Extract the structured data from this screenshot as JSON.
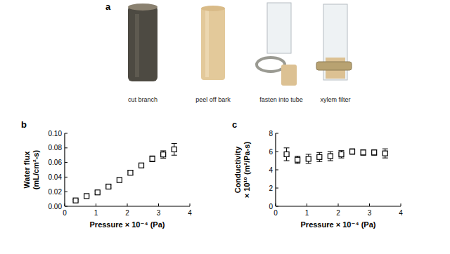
{
  "panel_a": {
    "label": "a",
    "steps": [
      "cut branch",
      "peel off bark",
      "fasten into tube",
      "xylem filter"
    ]
  },
  "chart_data": [
    {
      "type": "scatter",
      "title": "b",
      "xlabel": "Pressure × 10⁻⁴ (Pa)",
      "ylabel": [
        "Water flux",
        "(mL/cm²-s)"
      ],
      "x": [
        0.35,
        0.7,
        1.05,
        1.4,
        1.75,
        2.1,
        2.45,
        2.8,
        3.15,
        3.5
      ],
      "values": [
        0.008,
        0.014,
        0.019,
        0.027,
        0.036,
        0.046,
        0.056,
        0.065,
        0.071,
        0.078
      ],
      "errors": [
        0.001,
        0.001,
        0.002,
        0.002,
        0.003,
        0.003,
        0.003,
        0.004,
        0.005,
        0.008
      ],
      "xlim": [
        0,
        4
      ],
      "xticks": [
        0,
        1,
        2,
        3,
        4
      ],
      "ylim": [
        0,
        0.1
      ],
      "yticks": [
        {
          "value": 0,
          "label": "0.00"
        },
        {
          "value": 0.02,
          "label": "0.02"
        },
        {
          "value": 0.04,
          "label": "0.04"
        },
        {
          "value": 0.06,
          "label": "0.06"
        },
        {
          "value": 0.08,
          "label": "0.08"
        },
        {
          "value": 0.1,
          "label": "0.10"
        }
      ],
      "marker": "square",
      "color": "#000000",
      "grid": false
    },
    {
      "type": "scatter",
      "title": "c",
      "xlabel": "Pressure × 10⁻⁴ (Pa)",
      "ylabel": [
        "Conductivity",
        "× 10¹⁰ (m²/Pa-s)"
      ],
      "x": [
        0.35,
        0.7,
        1.05,
        1.4,
        1.75,
        2.1,
        2.45,
        2.8,
        3.15,
        3.5
      ],
      "values": [
        5.7,
        5.1,
        5.2,
        5.4,
        5.5,
        5.7,
        6.0,
        5.9,
        5.9,
        5.8
      ],
      "errors": [
        0.7,
        0.4,
        0.5,
        0.5,
        0.5,
        0.4,
        0.3,
        0.3,
        0.3,
        0.5
      ],
      "xlim": [
        0,
        4
      ],
      "xticks": [
        0,
        1,
        2,
        3,
        4
      ],
      "ylim": [
        0,
        8
      ],
      "yticks": [
        0,
        2,
        4,
        6,
        8
      ],
      "marker": "square",
      "color": "#000000",
      "grid": false
    }
  ]
}
